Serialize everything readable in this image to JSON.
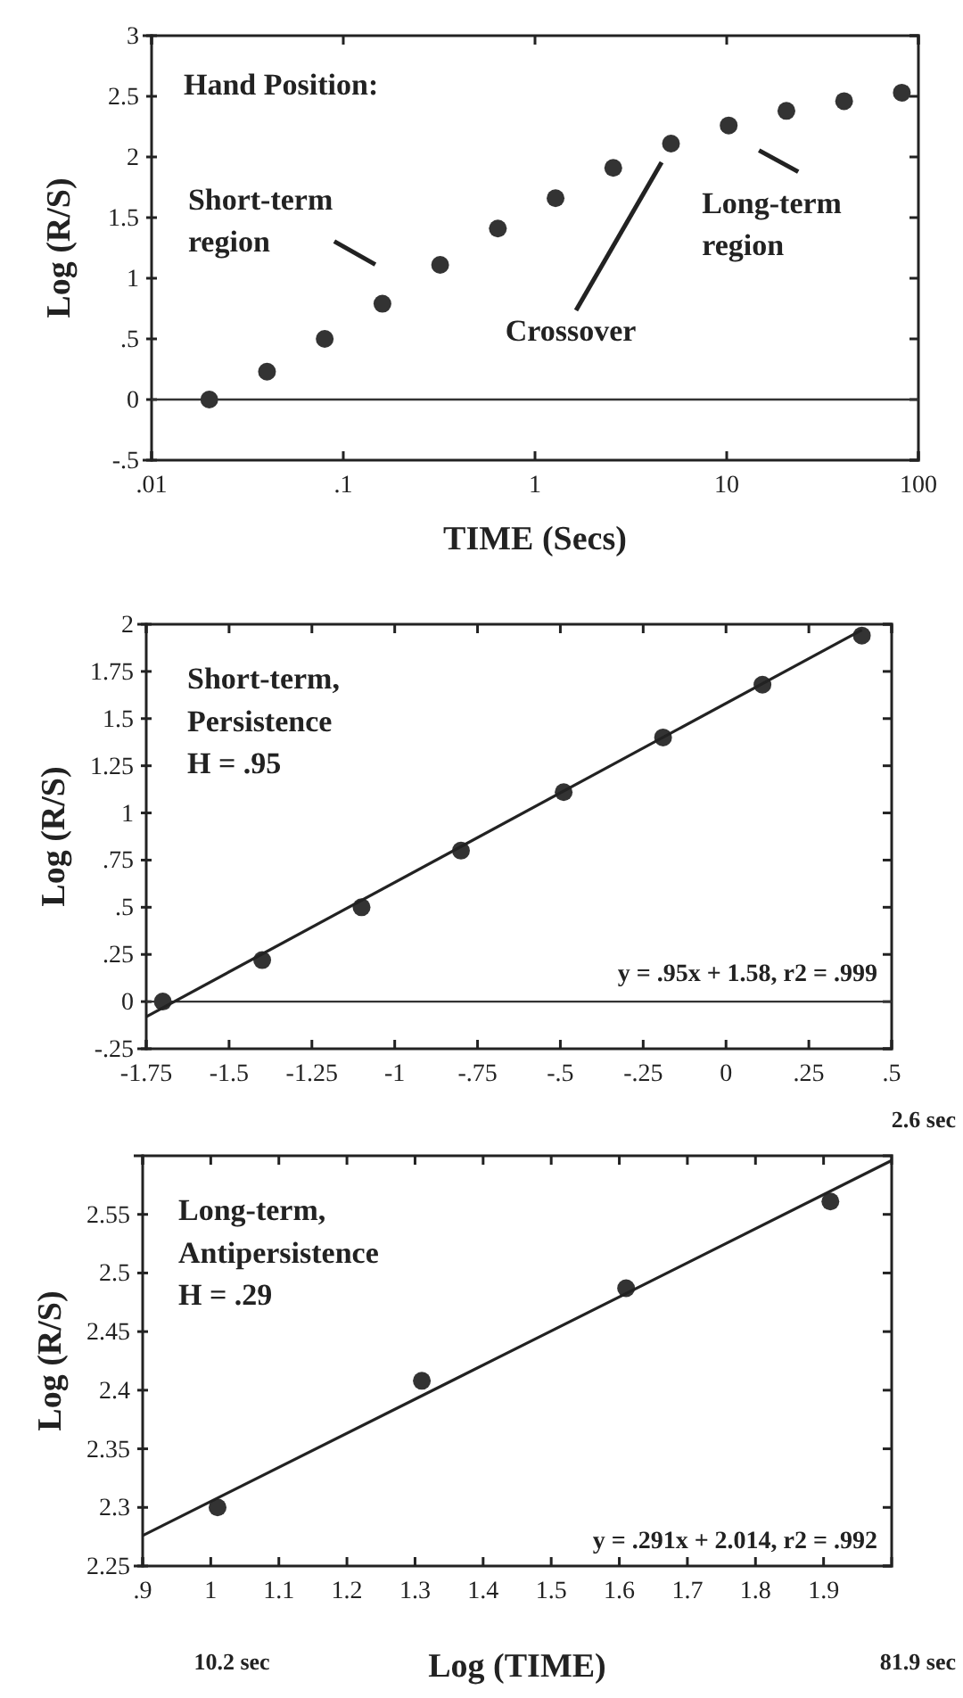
{
  "chart_data": [
    {
      "type": "scatter",
      "xlabel": "TIME (Secs)",
      "ylabel": "Log (R/S)",
      "log": "x",
      "xlim": [
        0.01,
        100
      ],
      "xticks": [
        {
          "value": 0.01,
          "label": ".01"
        },
        {
          "value": 0.1,
          "label": ".1"
        },
        1,
        10,
        100
      ],
      "ylim": [
        -0.5,
        3
      ],
      "yticks": [
        {
          "value": -0.5,
          "label": "-.5"
        },
        0,
        {
          "value": 0.5,
          "label": ".5"
        },
        1,
        1.5,
        2,
        2.5,
        3
      ],
      "x": [
        0.02,
        0.04,
        0.08,
        0.16,
        0.32,
        0.64,
        1.28,
        2.56,
        5.12,
        10.24,
        20.48,
        40.96,
        81.92
      ],
      "series": [
        {
          "color": "#333333",
          "marker": "circle",
          "values": [
            0,
            0.23,
            0.5,
            0.79,
            1.11,
            1.41,
            1.66,
            1.91,
            2.11,
            2.26,
            2.38,
            2.46,
            2.53
          ]
        }
      ],
      "ref_lines": [
        {
          "axis": "y",
          "value": 0,
          "color": "#333333"
        }
      ],
      "annotations": [
        "Hand Position:",
        {
          "text": "Short-term\nregion",
          "x": 0.16,
          "y": 0.79
        },
        "Crossover",
        {
          "text": "Long-term\nregion",
          "x": 10.24,
          "y": 2.26
        }
      ]
    },
    {
      "type": "scatter",
      "ylabel": "Log (R/S)",
      "xlim": [
        -1.75,
        0.5
      ],
      "xticks": [
        -1.75,
        -1.5,
        -1.25,
        -1,
        {
          "value": -0.75,
          "label": "-.75"
        },
        {
          "value": -0.5,
          "label": "-.5"
        },
        {
          "value": -0.25,
          "label": "-.25"
        },
        0,
        {
          "value": 0.25,
          "label": ".25"
        },
        {
          "value": 0.5,
          "label": ".5"
        }
      ],
      "ylim": [
        -0.25,
        2
      ],
      "yticks": [
        {
          "value": -0.25,
          "label": "-.25"
        },
        0,
        {
          "value": 0.25,
          "label": ".25"
        },
        {
          "value": 0.5,
          "label": ".5"
        },
        {
          "value": 0.75,
          "label": ".75"
        },
        1,
        1.25,
        1.5,
        1.75,
        2
      ],
      "x": [
        -1.7,
        -1.4,
        -1.1,
        -0.8,
        -0.49,
        -0.19,
        0.11,
        0.41
      ],
      "series": [
        {
          "color": "#333333",
          "marker": "circle",
          "values": [
            0,
            0.22,
            0.5,
            0.8,
            1.11,
            1.4,
            1.68,
            1.94
          ]
        },
        {
          "type": "line",
          "color": "#222222",
          "marker": "none",
          "line_style": "solid",
          "x": [
            -1.75,
            0.41
          ],
          "values": [
            -0.08,
            1.97
          ]
        }
      ],
      "ref_lines": [
        {
          "axis": "y",
          "value": 0,
          "color": "#333333"
        }
      ],
      "annotations": [
        "Short-term,\nPersistence\nH = .95",
        "y = .95x + 1.58, r2 = .999",
        "2.6 sec"
      ]
    },
    {
      "type": "scatter",
      "xlabel": "Log (TIME)",
      "ylabel": "Log (R/S)",
      "xlim": [
        0.9,
        2.0
      ],
      "xticks": [
        {
          "value": 0.9,
          "label": ".9"
        },
        1,
        1.1,
        1.2,
        1.3,
        1.4,
        1.5,
        1.6,
        1.7,
        1.8,
        1.9
      ],
      "ylim": [
        2.25,
        2.6
      ],
      "yticks": [
        2.25,
        2.3,
        2.35,
        2.4,
        2.45,
        2.5,
        2.55
      ],
      "x": [
        1.01,
        1.31,
        1.61,
        1.91
      ],
      "series": [
        {
          "color": "#333333",
          "marker": "circle",
          "values": [
            2.3,
            2.408,
            2.487,
            2.561
          ]
        },
        {
          "type": "line",
          "color": "#222222",
          "marker": "none",
          "line_style": "solid",
          "x": [
            0.9,
            2.0
          ],
          "values": [
            2.276,
            2.596
          ]
        }
      ],
      "annotations": [
        "Long-term,\nAntipersistence\nH = .29",
        "y = .291x + 2.014, r2 = .992",
        "10.2 sec",
        "81.9 sec"
      ]
    }
  ]
}
